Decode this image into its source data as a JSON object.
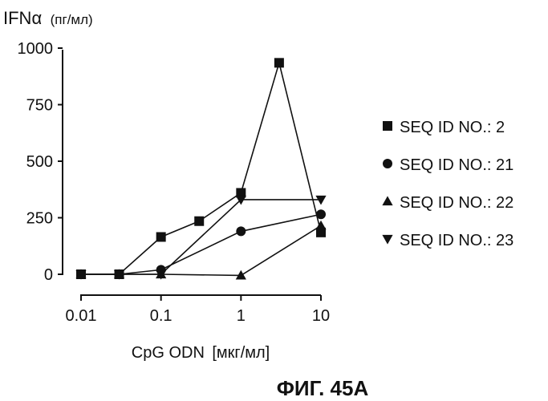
{
  "chart_data": {
    "type": "line",
    "ylabel_main": "IFNα",
    "ylabel_unit": "(пг/мл)",
    "xlabel_main": "CpG ODN",
    "xlabel_unit": "[мкг/мл]",
    "x_scale": "log",
    "xlim": [
      0.01,
      10
    ],
    "ylim": [
      0,
      1000
    ],
    "x_ticks": [
      0.01,
      0.1,
      1,
      10
    ],
    "x_tick_labels": [
      "0.01",
      "0.1",
      "1",
      "10"
    ],
    "y_ticks": [
      0,
      250,
      500,
      750,
      1000
    ],
    "y_tick_labels": [
      "0",
      "250",
      "500",
      "750",
      "1000"
    ],
    "grid": false,
    "legend_position": "right",
    "series": [
      {
        "name": "SEQ ID NO.: 2",
        "marker": "square",
        "x": [
          0.01,
          0.03,
          0.1,
          0.3,
          1,
          3,
          10
        ],
        "y": [
          0,
          0,
          165,
          235,
          360,
          935,
          185
        ]
      },
      {
        "name": "SEQ ID NO.: 21",
        "marker": "circle",
        "x": [
          0.01,
          0.03,
          0.1,
          1,
          10
        ],
        "y": [
          0,
          0,
          20,
          190,
          265
        ]
      },
      {
        "name": "SEQ ID NO.: 22",
        "marker": "triangle-up",
        "x": [
          0.01,
          0.03,
          0.1,
          1,
          10
        ],
        "y": [
          0,
          0,
          0,
          -5,
          215
        ]
      },
      {
        "name": "SEQ ID NO.: 23",
        "marker": "triangle-down",
        "x": [
          0.01,
          0.03,
          0.1,
          1,
          10
        ],
        "y": [
          0,
          0,
          0,
          330,
          330
        ]
      }
    ]
  },
  "caption": "ФИГ. 45А"
}
